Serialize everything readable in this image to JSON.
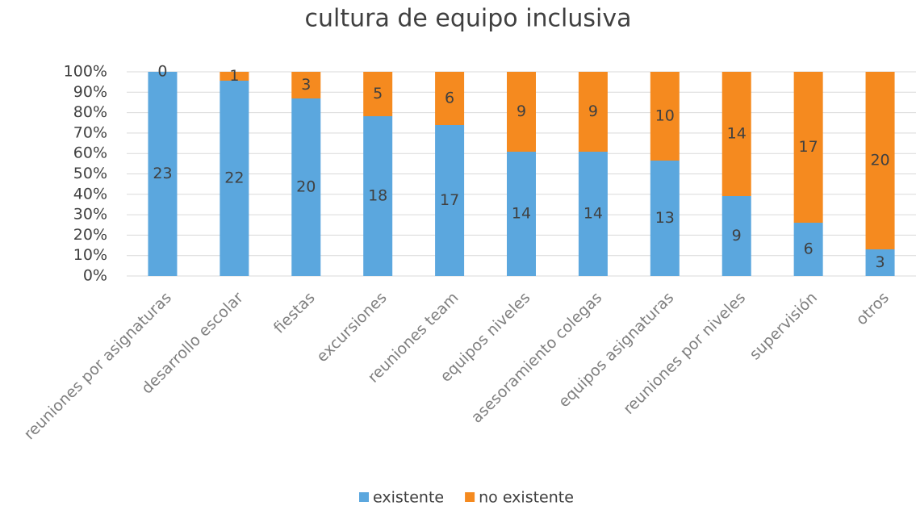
{
  "chart_data": {
    "type": "bar",
    "stacking": "percent",
    "title": "cultura de equipo inclusiva",
    "categories": [
      "reuniones por asignaturas",
      "desarrollo escolar",
      "fiestas",
      "excursiones",
      "reuniones team",
      "equipos  niveles",
      "asesoramiento colegas",
      "equipos asignaturas",
      "reuniones por niveles",
      "supervisión",
      "otros"
    ],
    "series": [
      {
        "name": "existente",
        "color": "#5ba7de",
        "values": [
          23,
          22,
          20,
          18,
          17,
          14,
          14,
          13,
          9,
          6,
          3
        ]
      },
      {
        "name": "no existente",
        "color": "#f58a1f",
        "values": [
          0,
          1,
          3,
          5,
          6,
          9,
          9,
          10,
          14,
          17,
          20
        ]
      }
    ],
    "ylim": [
      0,
      100
    ],
    "yticks": [
      {
        "value": 0,
        "label": "0%"
      },
      {
        "value": 10,
        "label": "10%"
      },
      {
        "value": 20,
        "label": "20%"
      },
      {
        "value": 30,
        "label": "30%"
      },
      {
        "value": 40,
        "label": "40%"
      },
      {
        "value": 50,
        "label": "50%"
      },
      {
        "value": 60,
        "label": "60%"
      },
      {
        "value": 70,
        "label": "70%"
      },
      {
        "value": 80,
        "label": "80%"
      },
      {
        "value": 90,
        "label": "90%"
      },
      {
        "value": 100,
        "label": "100%"
      }
    ],
    "grid": true,
    "legend": "bottom"
  }
}
